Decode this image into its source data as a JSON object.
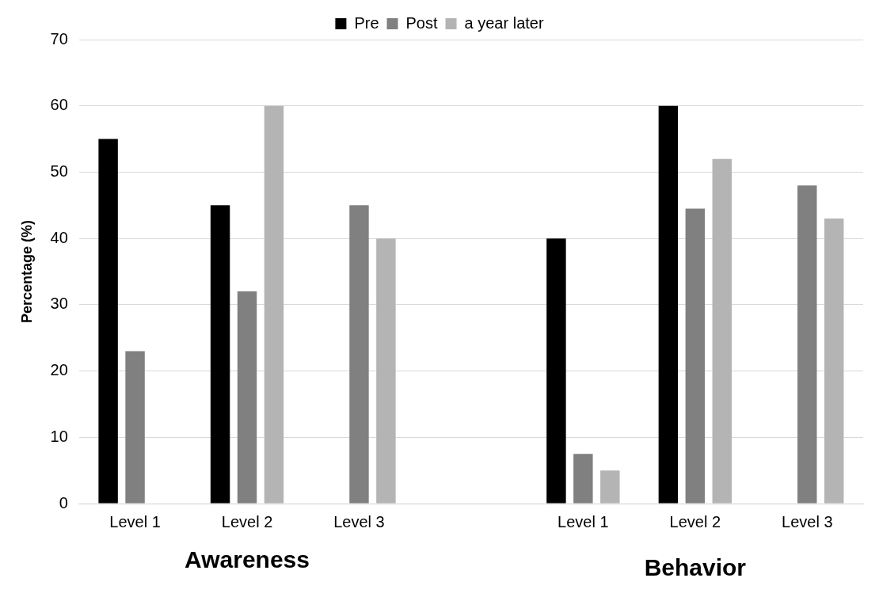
{
  "chart_data": {
    "type": "bar",
    "ylabel": "Percentage (%)",
    "categories": [
      "Level 1",
      "Level 2",
      "Level 3",
      null,
      "Level 1",
      "Level 2",
      "Level 3"
    ],
    "series": [
      {
        "name": "Pre",
        "color": "#000000",
        "values": [
          55,
          45,
          null,
          null,
          40,
          60,
          null
        ]
      },
      {
        "name": "Post",
        "color": "#808080",
        "values": [
          23,
          32,
          45,
          null,
          7.5,
          44.5,
          48
        ]
      },
      {
        "name": "a year later",
        "color": "#b4b4b4",
        "values": [
          null,
          60,
          40,
          null,
          5,
          52,
          43
        ]
      }
    ],
    "ylim": [
      0,
      70
    ],
    "yticks": [
      0,
      10,
      20,
      30,
      40,
      50,
      60,
      70
    ],
    "grid": "y",
    "legend": "top",
    "annotations": [
      "Awareness",
      "Behavior"
    ]
  }
}
